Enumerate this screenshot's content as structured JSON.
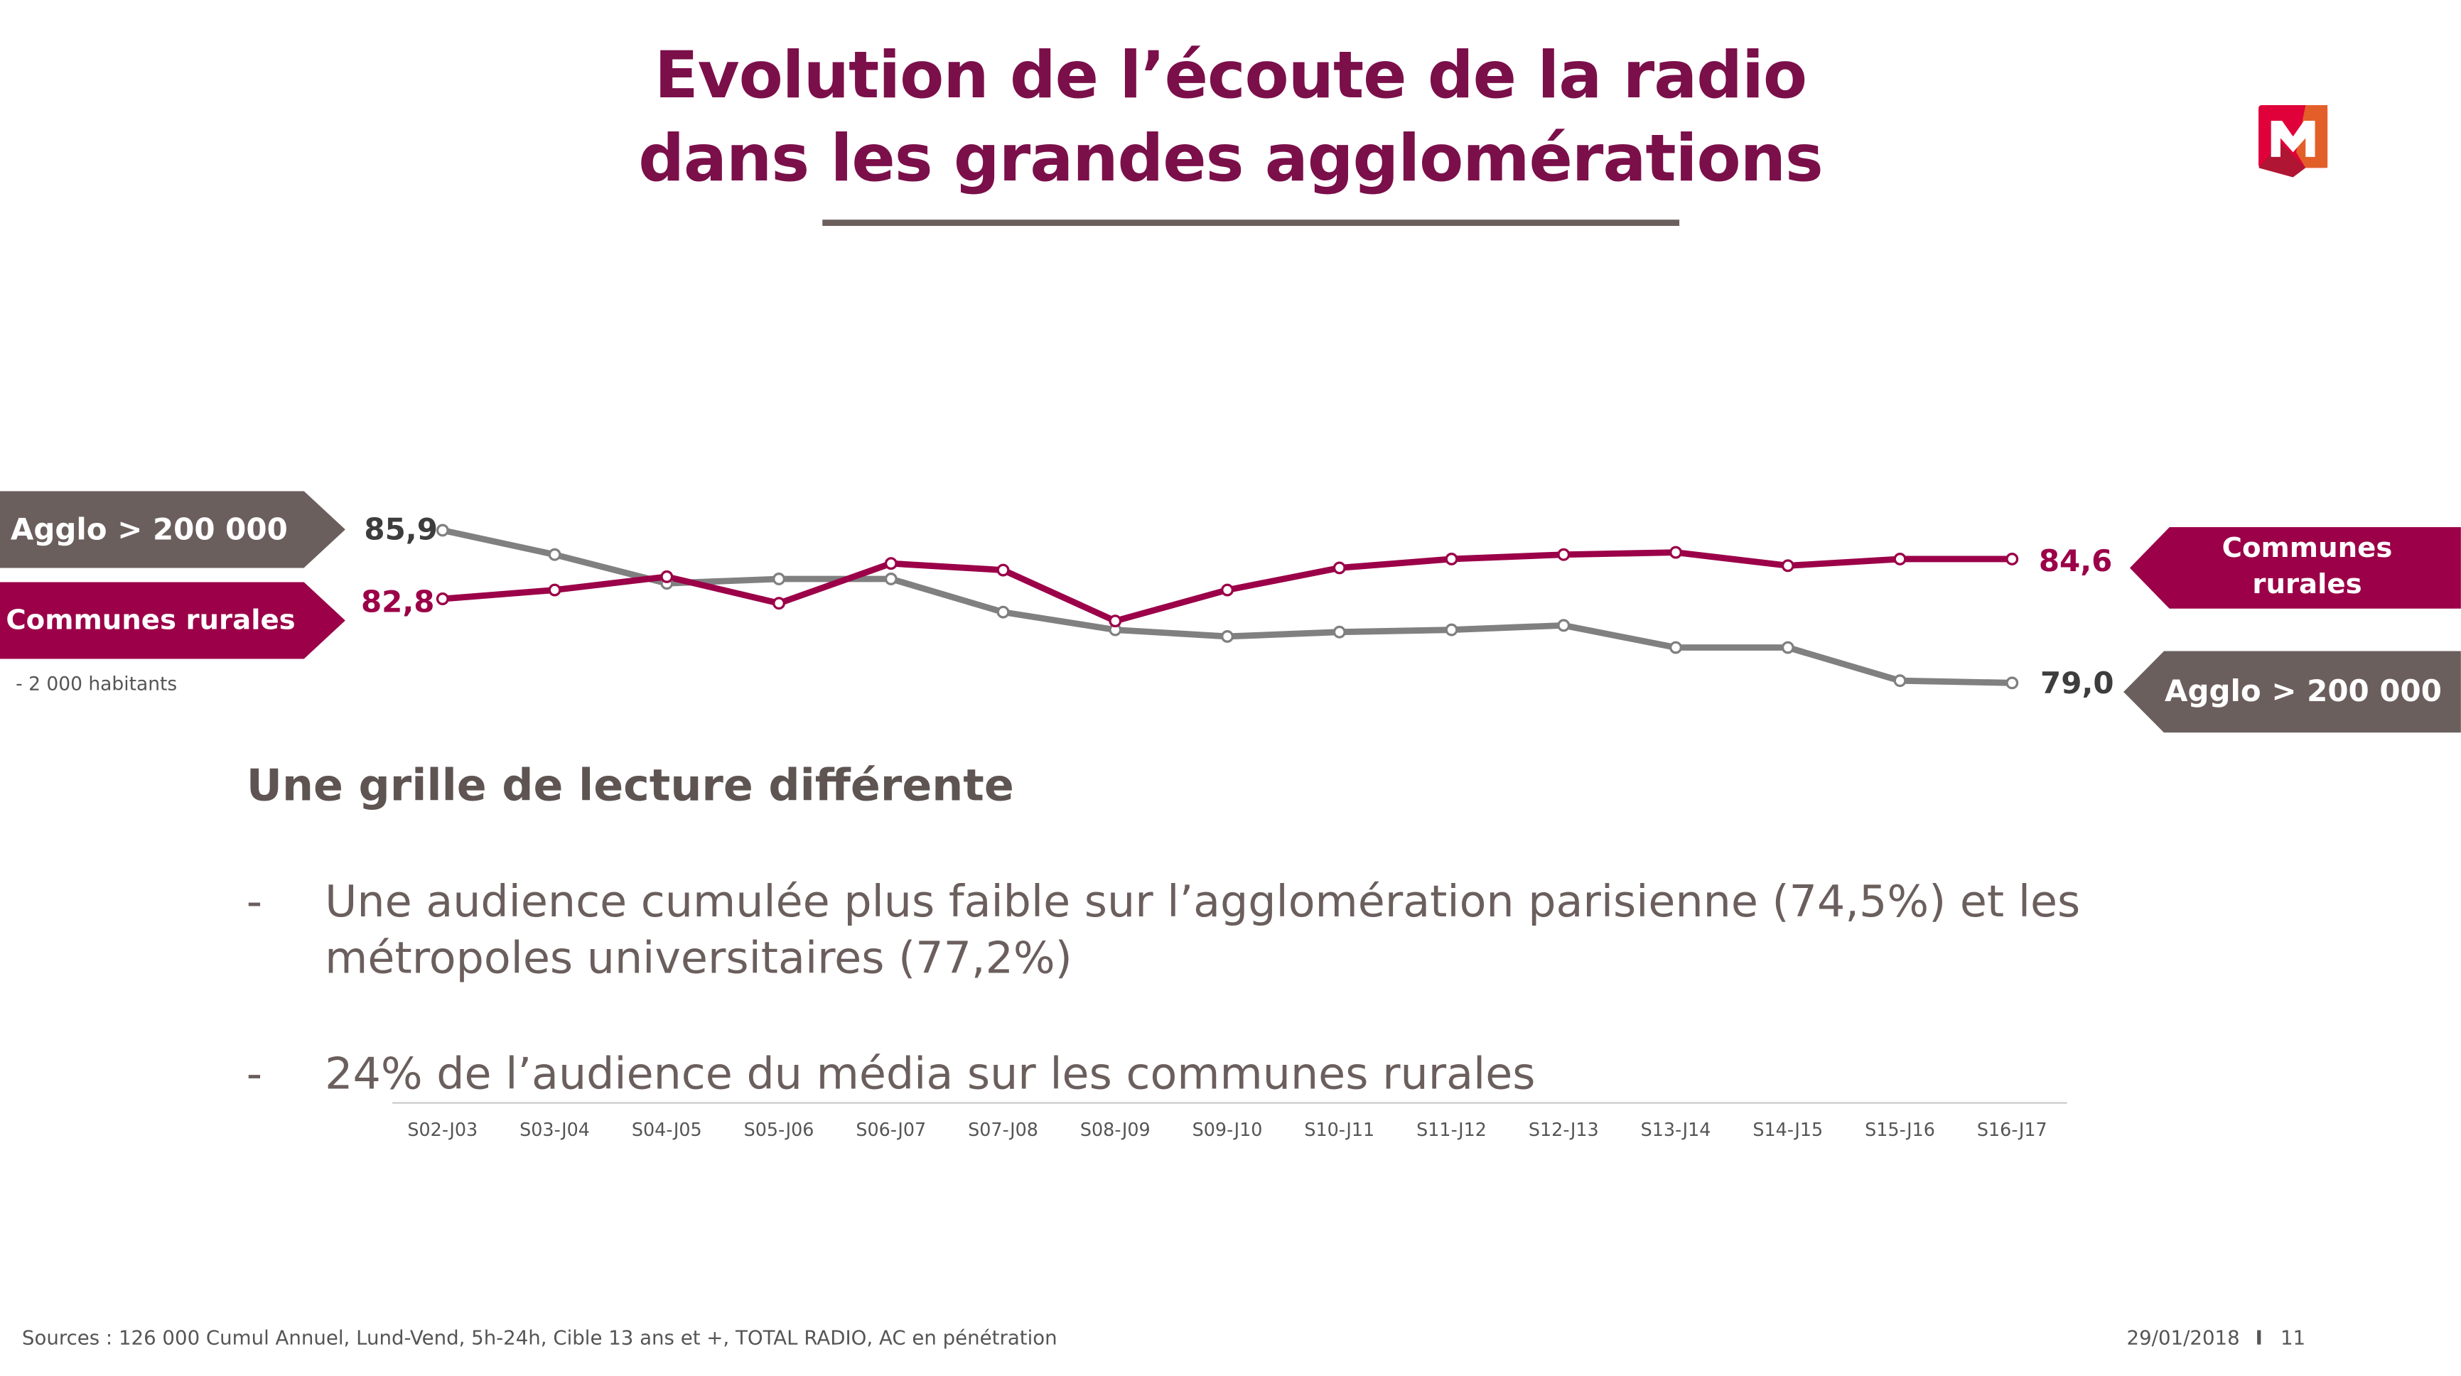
{
  "header": {
    "title_line1": "Evolution de l’écoute de la radio",
    "title_line2": "dans les grandes agglomérations"
  },
  "logo": {
    "icon": "m-logo-icon",
    "colors": [
      "#e0003a",
      "#e35f2a",
      "#b01533"
    ]
  },
  "chart_data": {
    "type": "line",
    "categories": [
      "S02-J03",
      "S03-J04",
      "S04-J05",
      "S05-J06",
      "S06-J07",
      "S07-J08",
      "S08-J09",
      "S09-J10",
      "S10-J11",
      "S11-J12",
      "S12-J13",
      "S13-J14",
      "S14-J15",
      "S15-J16",
      "S16-J17"
    ],
    "series": [
      {
        "name": "Agglo > 200 000",
        "color": "#808080",
        "values": [
          85.9,
          84.8,
          83.5,
          83.7,
          83.7,
          82.2,
          81.4,
          81.1,
          81.3,
          81.4,
          81.6,
          80.6,
          80.6,
          79.1,
          79.0
        ]
      },
      {
        "name": "Communes rurales",
        "color": "#9b0048",
        "values": [
          82.8,
          83.2,
          83.8,
          82.6,
          84.4,
          84.1,
          81.8,
          83.2,
          84.2,
          84.6,
          84.8,
          84.9,
          84.3,
          84.6,
          84.6
        ]
      }
    ],
    "start_labels": {
      "agglo": "85,9",
      "rurales": "82,8"
    },
    "end_labels": {
      "agglo": "79,0",
      "rurales": "84,6"
    },
    "legend_left": {
      "agglo": "Agglo > 200 000",
      "rurales": "Communes rurales",
      "rurales_note": "- 2 000 habitants"
    },
    "legend_right": {
      "rurales_line1": "Communes",
      "rurales_line2": "rurales",
      "agglo": "Agglo > 200 000"
    }
  },
  "body": {
    "heading": "Une grille de lecture différente",
    "bullets": [
      {
        "dash": "-",
        "text": "Une audience cumulée plus faible sur l’agglomération parisienne (74,5%) et les métropoles universitaires (77,2%)"
      },
      {
        "dash": "-",
        "text": "24% de l’audience du média sur les communes rurales"
      }
    ]
  },
  "footer": {
    "sources": "Sources : 126 000 Cumul Annuel, Lund-Vend, 5h-24h, Cible 13 ans et +, TOTAL RADIO, AC en pénétration",
    "date": "29/01/2018",
    "separator": "I",
    "page": "11"
  }
}
